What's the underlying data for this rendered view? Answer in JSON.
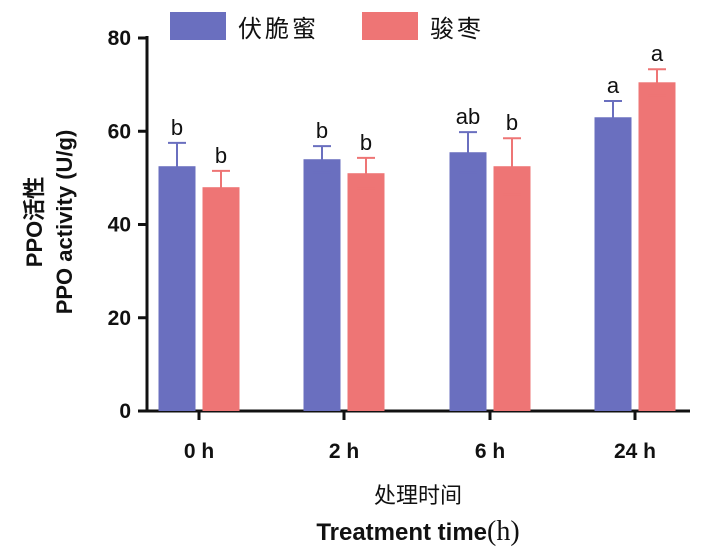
{
  "chart_data": {
    "type": "bar",
    "categories": [
      "0 h",
      "2 h",
      "6 h",
      "24 h"
    ],
    "series": [
      {
        "name": "伏脆蜜",
        "color": "#6a6fbf",
        "values": [
          52.5,
          54.0,
          55.5,
          63.0
        ],
        "errors": [
          5.0,
          2.8,
          4.3,
          3.5
        ],
        "labels": [
          "b",
          "b",
          "ab",
          "a"
        ]
      },
      {
        "name": "骏枣",
        "color": "#ee7575",
        "values": [
          48.0,
          51.0,
          52.5,
          70.5
        ],
        "errors": [
          3.5,
          3.3,
          6.0,
          2.8
        ],
        "labels": [
          "b",
          "b",
          "b",
          "a"
        ]
      }
    ],
    "ylim": [
      0,
      80
    ],
    "yticks": [
      0,
      20,
      40,
      60,
      80
    ],
    "ylabel_cn": "PPO活性",
    "ylabel_en": "PPO activity (U/g)",
    "xlabel_cn": "处理时间",
    "xlabel_en": "Treatment time",
    "xlabel_unit": "(h)",
    "legend_position": "top",
    "grid": false
  }
}
